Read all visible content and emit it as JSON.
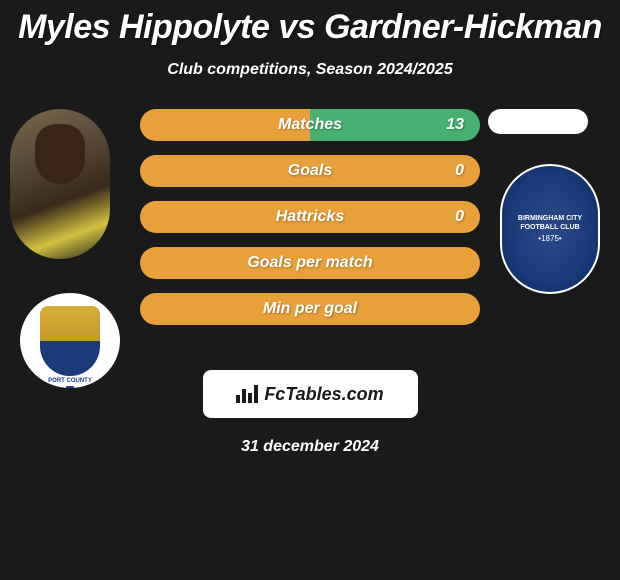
{
  "title": "Myles Hippolyte vs Gardner-Hickman",
  "subtitle": "Club competitions, Season 2024/2025",
  "player_left": {
    "name": "Myles Hippolyte",
    "club_name": "PORT COUNTY",
    "club_colors": {
      "primary": "#d4af37",
      "secondary": "#1a3a7a"
    }
  },
  "player_right": {
    "name": "Gardner-Hickman",
    "club_name": "BIRMINGHAM CITY",
    "club_name2": "FOOTBALL CLUB",
    "club_year": "1875",
    "club_colors": {
      "primary": "#1a3a7a",
      "secondary": "#ffffff"
    }
  },
  "stats": [
    {
      "label": "Matches",
      "value_right": "13",
      "has_value": true,
      "dual": true
    },
    {
      "label": "Goals",
      "value_right": "0",
      "has_value": true,
      "dual": false
    },
    {
      "label": "Hattricks",
      "value_right": "0",
      "has_value": true,
      "dual": false
    },
    {
      "label": "Goals per match",
      "value_right": "",
      "has_value": false,
      "dual": false
    },
    {
      "label": "Min per goal",
      "value_right": "",
      "has_value": false,
      "dual": false
    }
  ],
  "colors": {
    "bar_left": "#e8a03a",
    "bar_right": "#48b070",
    "background": "#1a1a1a",
    "text": "#ffffff"
  },
  "footer": {
    "brand": "FcTables.com",
    "date": "31 december 2024"
  }
}
